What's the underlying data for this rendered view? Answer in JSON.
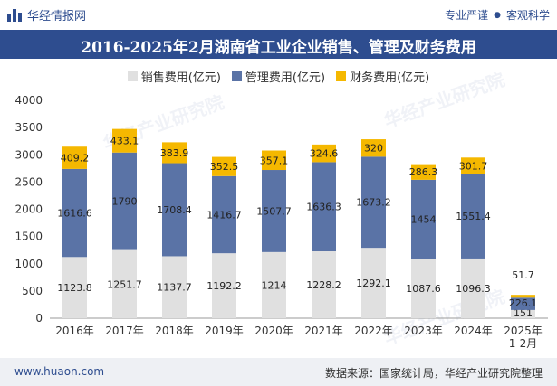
{
  "header": {
    "brand": "华经情报网",
    "tag1": "专业严谨",
    "tag2": "客观科学",
    "separator": "●"
  },
  "title": "2016-2025年2月湖南省工业企业销售、管理及财务费用",
  "footer": {
    "website": "www.huaon.com",
    "source": "数据来源：国家统计局，华经产业研究院整理"
  },
  "watermark": "华经产业研究院",
  "colors": {
    "sales": "#e0e0e0",
    "admin": "#5a73a6",
    "finance": "#f5b800",
    "brand": "#2e4d8f"
  },
  "chart_data": {
    "type": "bar",
    "stacked": true,
    "categories": [
      "2016年",
      "2017年",
      "2018年",
      "2019年",
      "2020年",
      "2021年",
      "2022年",
      "2023年",
      "2024年",
      "2025年 1-2月"
    ],
    "series": [
      {
        "name": "销售费用(亿元)",
        "values": [
          1123.8,
          1251.7,
          1137.7,
          1192.2,
          1214,
          1228.2,
          1292.1,
          1087.6,
          1096.3,
          151
        ]
      },
      {
        "name": "管理费用(亿元)",
        "values": [
          1616.6,
          1790,
          1708.4,
          1416.7,
          1507.7,
          1636.3,
          1673.2,
          1454,
          1551.4,
          226.1
        ]
      },
      {
        "name": "财务费用(亿元)",
        "values": [
          409.2,
          433.1,
          383.9,
          352.5,
          357.1,
          324.6,
          320,
          286.3,
          301.7,
          51.7
        ]
      }
    ],
    "ylim": [
      0,
      4000
    ],
    "yticks": [
      0,
      500,
      1000,
      1500,
      2000,
      2500,
      3000,
      3500,
      4000
    ],
    "legend_position": "top-center",
    "grid": false
  }
}
